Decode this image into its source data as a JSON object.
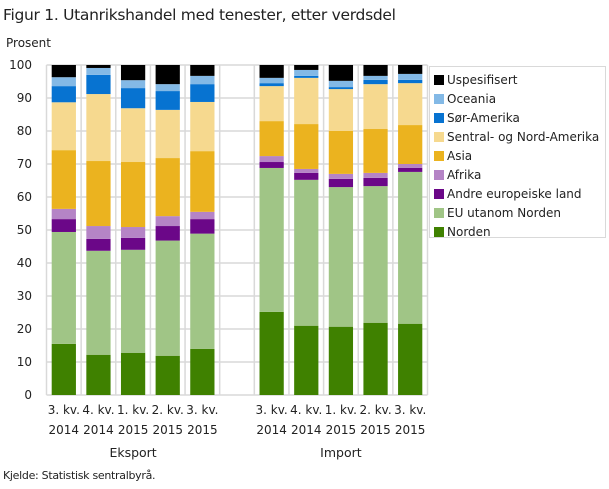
{
  "figure": {
    "title": "Figur 1. Utanrikshandel med tenester, etter verdsdel",
    "source": "Kjelde: Statistisk sentralbyrå."
  },
  "chart_data": {
    "type": "bar",
    "stacked": true,
    "title": "Figur 1. Utanrikshandel med tenester, etter verdsdel",
    "ylabel": "Prosent",
    "xlabel": "",
    "ylim": [
      0,
      100
    ],
    "yticks": [
      0,
      10,
      20,
      30,
      40,
      50,
      60,
      70,
      80,
      90,
      100
    ],
    "grid": true,
    "legend_position": "right",
    "groups": [
      {
        "name": "Eksport",
        "categories": [
          [
            "3. kv.",
            "2014"
          ],
          [
            "4. kv.",
            "2014"
          ],
          [
            "1. kv.",
            "2015"
          ],
          [
            "2. kv.",
            "2015"
          ],
          [
            "3. kv.",
            "2015"
          ]
        ]
      },
      {
        "name": "Import",
        "categories": [
          [
            "3. kv.",
            "2014"
          ],
          [
            "4. kv.",
            "2014"
          ],
          [
            "1. kv.",
            "2015"
          ],
          [
            "2. kv.",
            "2015"
          ],
          [
            "3. kv.",
            "2015"
          ]
        ]
      }
    ],
    "series": [
      {
        "name": "Norden",
        "color": "#3f8100",
        "values": [
          15.5,
          12.2,
          12.8,
          11.9,
          14.0,
          25.2,
          21.0,
          20.7,
          21.9,
          21.6
        ]
      },
      {
        "name": "EU utanom Norden",
        "color": "#a0c586",
        "values": [
          33.9,
          31.5,
          31.2,
          34.9,
          34.9,
          43.6,
          44.2,
          42.3,
          41.4,
          46.0
        ]
      },
      {
        "name": "Andre europeiske land",
        "color": "#6b0788",
        "values": [
          3.9,
          3.6,
          3.6,
          4.4,
          4.4,
          1.8,
          2.1,
          2.5,
          2.5,
          1.2
        ]
      },
      {
        "name": "Afrika",
        "color": "#b584c6",
        "values": [
          3.1,
          3.9,
          3.3,
          3.0,
          2.2,
          1.8,
          1.2,
          1.5,
          1.5,
          1.2
        ]
      },
      {
        "name": "Asia",
        "color": "#ebb31f",
        "values": [
          17.8,
          19.7,
          19.7,
          17.6,
          18.4,
          10.6,
          13.6,
          13.0,
          13.3,
          11.8
        ]
      },
      {
        "name": "Sentral- og Nord-Amerika",
        "color": "#f6d98f",
        "values": [
          14.5,
          20.3,
          16.3,
          14.6,
          14.9,
          10.6,
          14.0,
          12.7,
          13.6,
          12.7
        ]
      },
      {
        "name": "Sør-Amerika",
        "color": "#0773d1",
        "values": [
          4.9,
          5.8,
          6.1,
          5.7,
          5.4,
          0.9,
          0.6,
          0.6,
          1.3,
          1.0
        ]
      },
      {
        "name": "Oceania",
        "color": "#83b9e6",
        "values": [
          2.7,
          2.1,
          2.4,
          2.1,
          2.5,
          1.6,
          1.8,
          1.9,
          1.2,
          1.8
        ]
      },
      {
        "name": "Uspesifisert",
        "color": "#000000",
        "values": [
          3.7,
          0.9,
          4.6,
          5.8,
          3.3,
          3.9,
          1.5,
          4.8,
          3.3,
          2.7
        ]
      }
    ],
    "legend_order": [
      "Uspesifisert",
      "Oceania",
      "Sør-Amerika",
      "Sentral- og Nord-Amerika",
      "Asia",
      "Afrika",
      "Andre europeiske land",
      "EU utanom Norden",
      "Norden"
    ]
  }
}
